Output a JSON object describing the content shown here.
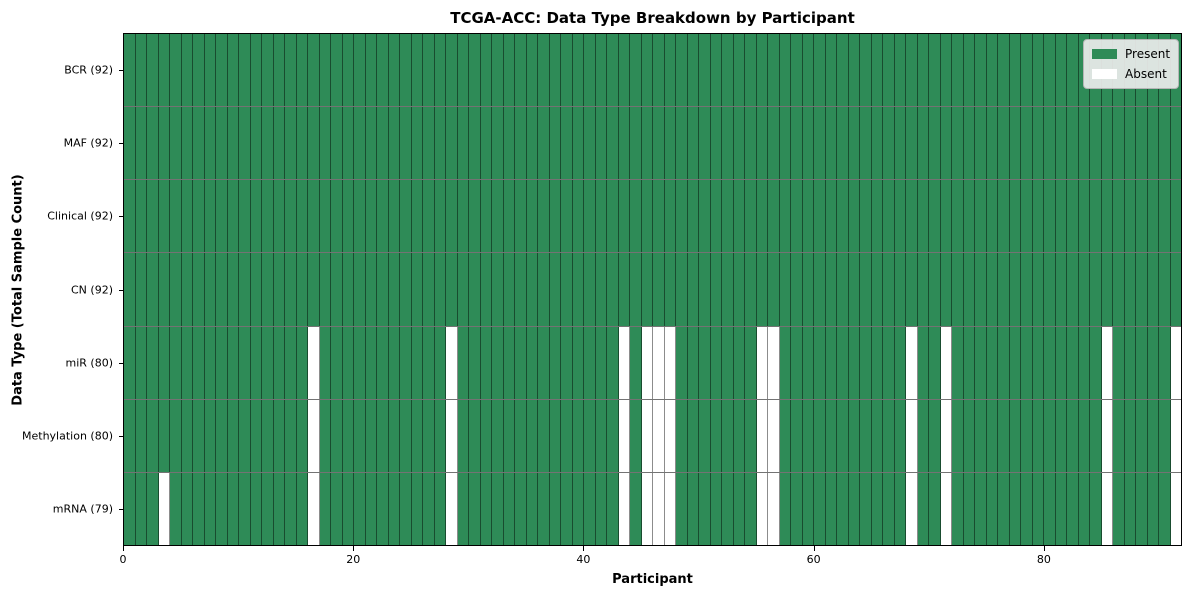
{
  "chart_data": {
    "type": "heatmap",
    "title": "TCGA-ACC: Data Type Breakdown by Participant",
    "xlabel": "Participant",
    "ylabel": "Data Type (Total Sample Count)",
    "n_participants": 92,
    "x_axis": {
      "range": [
        0,
        92
      ],
      "ticks": [
        0,
        20,
        40,
        60,
        80
      ]
    },
    "rows": [
      {
        "label": "BCR (92)",
        "present_count": 92,
        "absent_participants": []
      },
      {
        "label": "MAF (92)",
        "present_count": 92,
        "absent_participants": []
      },
      {
        "label": "Clinical (92)",
        "present_count": 92,
        "absent_participants": []
      },
      {
        "label": "CN (92)",
        "present_count": 92,
        "absent_participants": []
      },
      {
        "label": "miR (80)",
        "present_count": 80,
        "absent_participants": [
          16,
          28,
          43,
          45,
          46,
          47,
          55,
          56,
          68,
          71,
          85,
          91
        ]
      },
      {
        "label": "Methylation (80)",
        "present_count": 80,
        "absent_participants": [
          16,
          28,
          43,
          45,
          46,
          47,
          55,
          56,
          68,
          71,
          85,
          91
        ]
      },
      {
        "label": "mRNA (79)",
        "present_count": 79,
        "absent_participants": [
          3,
          16,
          28,
          43,
          45,
          46,
          47,
          55,
          56,
          68,
          71,
          85,
          91
        ]
      }
    ],
    "legend": [
      {
        "label": "Present",
        "color": "#2e8b57"
      },
      {
        "label": "Absent",
        "color": "#ffffff"
      }
    ],
    "colors": {
      "present": "#2e8b57",
      "absent": "#ffffff",
      "cell_edge": "rgba(0,0,0,0.45)",
      "plot_border": "#000000",
      "background": "#ffffff"
    },
    "legend_position": "top-right",
    "grid": true
  }
}
